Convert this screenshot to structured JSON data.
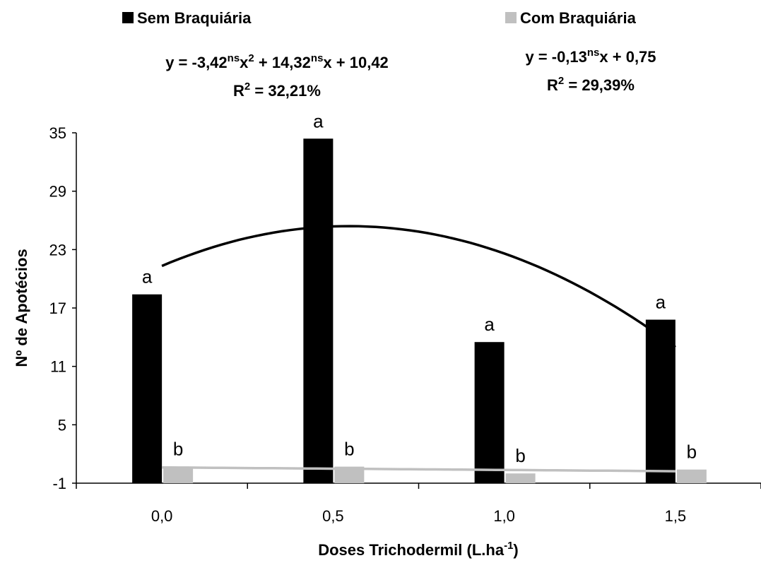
{
  "chart_data": {
    "type": "bar",
    "y_label": "Nº de Apotécios",
    "x_label": [
      {
        "text": "Doses Trichodermil (L.ha",
        "sup": "-1"
      },
      {
        "text": ")"
      }
    ],
    "categories": [
      "0,0",
      "0,5",
      "1,0",
      "1,5"
    ],
    "ylim": [
      -1,
      35
    ],
    "yticks": [
      -1,
      5,
      11,
      17,
      23,
      29,
      35
    ],
    "series": [
      {
        "name": "Sem Braquiária",
        "color": "#000000",
        "values": [
          18.4,
          34.4,
          13.5,
          15.8
        ],
        "bar_labels": [
          "a",
          "a",
          "a",
          "a"
        ],
        "trendline": {
          "coefficients": [
            -3.42,
            14.32,
            10.42
          ],
          "equation": [
            {
              "text": "y = -3,42",
              "sup": "ns"
            },
            {
              "text": "x",
              "sup": "2"
            },
            {
              "text": " + 14,32",
              "sup": "ns"
            },
            {
              "text": "x + 10,42"
            }
          ],
          "r2": [
            {
              "text": "R",
              "sup": "2"
            },
            {
              "text": " = 32,21%"
            }
          ]
        }
      },
      {
        "name": "Com Braquiária",
        "color": "#c0c0c0",
        "values": [
          0.7,
          0.7,
          0.0,
          0.4
        ],
        "bar_labels": [
          "b",
          "b",
          "b",
          "b"
        ],
        "trendline": {
          "coefficients": [
            -0.13,
            0.75
          ],
          "equation": [
            {
              "text": "y = -0,13",
              "sup": "ns"
            },
            {
              "text": "x + 0,75"
            }
          ],
          "r2": [
            {
              "text": "R",
              "sup": "2"
            },
            {
              "text": " = 29,39%"
            }
          ]
        }
      }
    ]
  }
}
